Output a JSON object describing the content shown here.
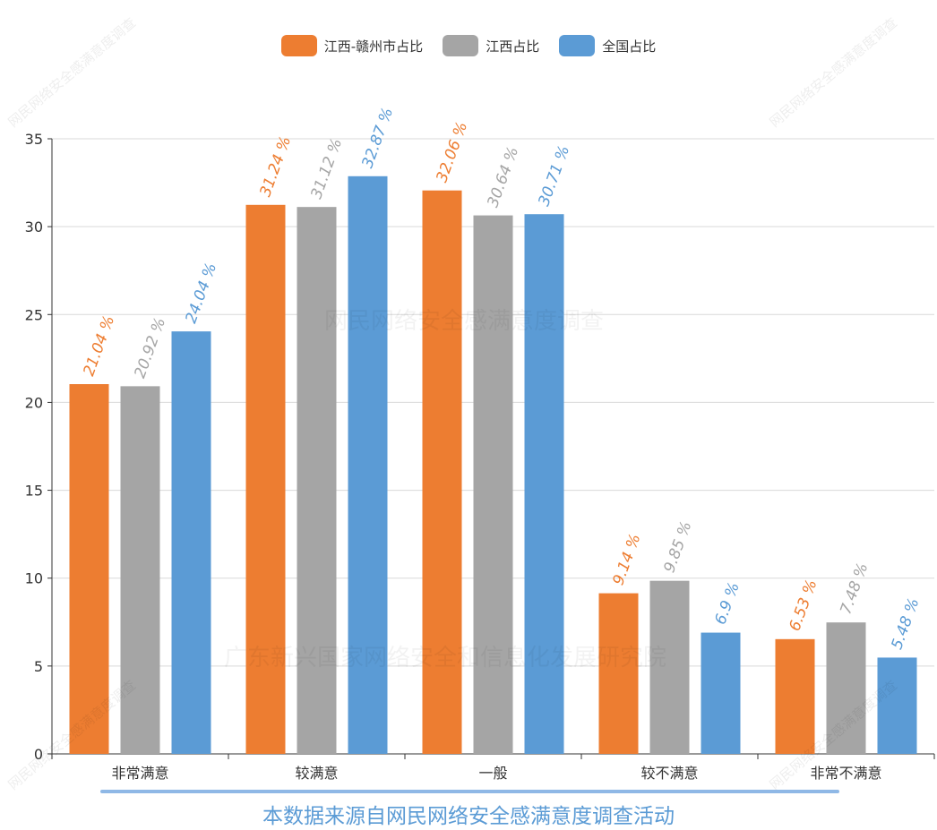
{
  "legend": [
    {
      "label": "江西-赣州市占比",
      "color": "#ed7d31"
    },
    {
      "label": "江西占比",
      "color": "#a5a5a5"
    },
    {
      "label": "全国占比",
      "color": "#5b9bd5"
    }
  ],
  "source_note": "本数据来源自网民网络安全感满意度调查活动",
  "watermarks": {
    "center_top": "网民网络安全感满意度调查",
    "center_bottom": "广东新兴国家网络安全和信息化发展研究院",
    "corner": "网民网络安全感满意度调查"
  },
  "chart_data": {
    "type": "bar",
    "categories": [
      "非常满意",
      "较满意",
      "一般",
      "较不满意",
      "非常不满意"
    ],
    "series": [
      {
        "name": "江西-赣州市占比",
        "color": "#ed7d31",
        "values": [
          21.04,
          31.24,
          32.06,
          9.14,
          6.53
        ],
        "labels": [
          "21.04 %",
          "31.24 %",
          "32.06 %",
          "9.14 %",
          "6.53 %"
        ]
      },
      {
        "name": "江西占比",
        "color": "#a5a5a5",
        "values": [
          20.92,
          31.12,
          30.64,
          9.85,
          7.48
        ],
        "labels": [
          "20.92 %",
          "31.12 %",
          "30.64 %",
          "9.85 %",
          "7.48 %"
        ]
      },
      {
        "name": "全国占比",
        "color": "#5b9bd5",
        "values": [
          24.04,
          32.87,
          30.71,
          6.9,
          5.48
        ],
        "labels": [
          "24.04 %",
          "32.87 %",
          "30.71 %",
          "6.9 %",
          "5.48 %"
        ]
      }
    ],
    "ylim": [
      0,
      35
    ],
    "yticks": [
      0,
      5,
      10,
      15,
      20,
      25,
      30,
      35
    ],
    "grid": true,
    "legend_position": "top-center"
  }
}
